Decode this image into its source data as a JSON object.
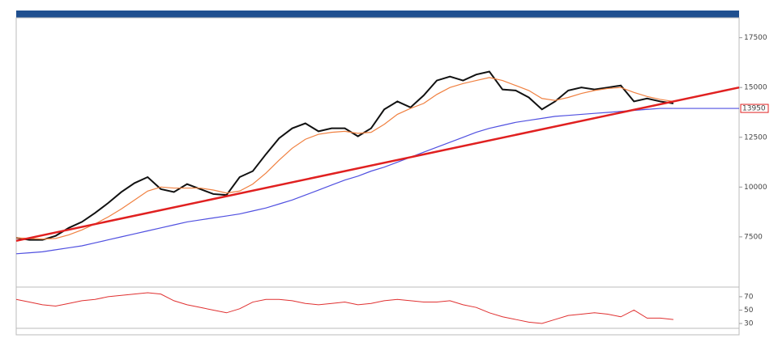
{
  "chart_data": [
    {
      "type": "line",
      "x": [
        0,
        1,
        2,
        3,
        4,
        5,
        6,
        7,
        8,
        9,
        10,
        11,
        12,
        13,
        14,
        15,
        16,
        17,
        18,
        19,
        20,
        21,
        22,
        23,
        24,
        25,
        26,
        27,
        28,
        29,
        30,
        31,
        32,
        33,
        34,
        35,
        36,
        37,
        38,
        39,
        40,
        41,
        42,
        43,
        44,
        45,
        46,
        47,
        48,
        49,
        50
      ],
      "xlim": [
        0,
        55
      ],
      "ylim": [
        5100,
        18500
      ],
      "yticks": [
        7500,
        10000,
        12500,
        15000,
        17500
      ],
      "grid": false,
      "price_tag": 13950,
      "series": [
        {
          "color": "#111111",
          "values": [
            7450,
            7350,
            7350,
            7550,
            7950,
            8250,
            8700,
            9200,
            9750,
            10200,
            10500,
            9900,
            9750,
            10150,
            9900,
            9650,
            9600,
            10500,
            10800,
            11650,
            12450,
            12950,
            13200,
            12800,
            12950,
            12950,
            12550,
            12950,
            13900,
            14300,
            14000,
            14600,
            15350,
            15550,
            15350,
            15650,
            15800,
            14900,
            14850,
            14500,
            13900,
            14300,
            14850,
            15000,
            14900,
            15000,
            15100,
            14300,
            14450,
            14300,
            14200
          ]
        },
        {
          "color": "#f08040",
          "values": [
            7450,
            7420,
            7390,
            7420,
            7600,
            7850,
            8150,
            8500,
            8900,
            9350,
            9800,
            10000,
            9950,
            9950,
            9950,
            9850,
            9700,
            9800,
            10150,
            10700,
            11350,
            11950,
            12400,
            12650,
            12750,
            12800,
            12700,
            12750,
            13150,
            13650,
            13950,
            14200,
            14650,
            15000,
            15200,
            15350,
            15500,
            15350,
            15100,
            14850,
            14450,
            14350,
            14500,
            14700,
            14850,
            14950,
            15000,
            14750,
            14550,
            14400,
            14300
          ]
        },
        {
          "color": "#5050e0",
          "values": [
            6650,
            6700,
            6750,
            6850,
            6950,
            7050,
            7200,
            7350,
            7500,
            7650,
            7800,
            7950,
            8100,
            8250,
            8350,
            8450,
            8550,
            8650,
            8800,
            8950,
            9150,
            9350,
            9600,
            9850,
            10100,
            10350,
            10550,
            10800,
            11000,
            11250,
            11500,
            11750,
            12000,
            12250,
            12500,
            12750,
            12950,
            13100,
            13250,
            13350,
            13450,
            13550,
            13600,
            13650,
            13700,
            13750,
            13800,
            13850,
            13900,
            13950,
            13950
          ]
        },
        {
          "color": "#e02020",
          "x": [
            0,
            55
          ],
          "values": [
            7300,
            15000
          ]
        }
      ]
    },
    {
      "type": "line",
      "x": [
        0,
        1,
        2,
        3,
        4,
        5,
        6,
        7,
        8,
        9,
        10,
        11,
        12,
        13,
        14,
        15,
        16,
        17,
        18,
        19,
        20,
        21,
        22,
        23,
        24,
        25,
        26,
        27,
        28,
        29,
        30,
        31,
        32,
        33,
        34,
        35,
        36,
        37,
        38,
        39,
        40,
        41,
        42,
        43,
        44,
        45,
        46,
        47,
        48,
        49,
        50
      ],
      "xlim": [
        0,
        55
      ],
      "ylim": [
        24,
        82
      ],
      "yticks": [
        70,
        50,
        30
      ],
      "series": [
        {
          "color": "#e03030",
          "values": [
            66,
            62,
            58,
            56,
            60,
            64,
            66,
            70,
            72,
            74,
            76,
            74,
            64,
            58,
            54,
            50,
            46,
            52,
            62,
            66,
            66,
            64,
            60,
            58,
            60,
            62,
            58,
            60,
            64,
            66,
            64,
            62,
            62,
            64,
            58,
            54,
            46,
            40,
            36,
            32,
            30,
            36,
            42,
            44,
            46,
            44,
            40,
            50,
            38,
            38,
            36
          ]
        }
      ]
    }
  ]
}
